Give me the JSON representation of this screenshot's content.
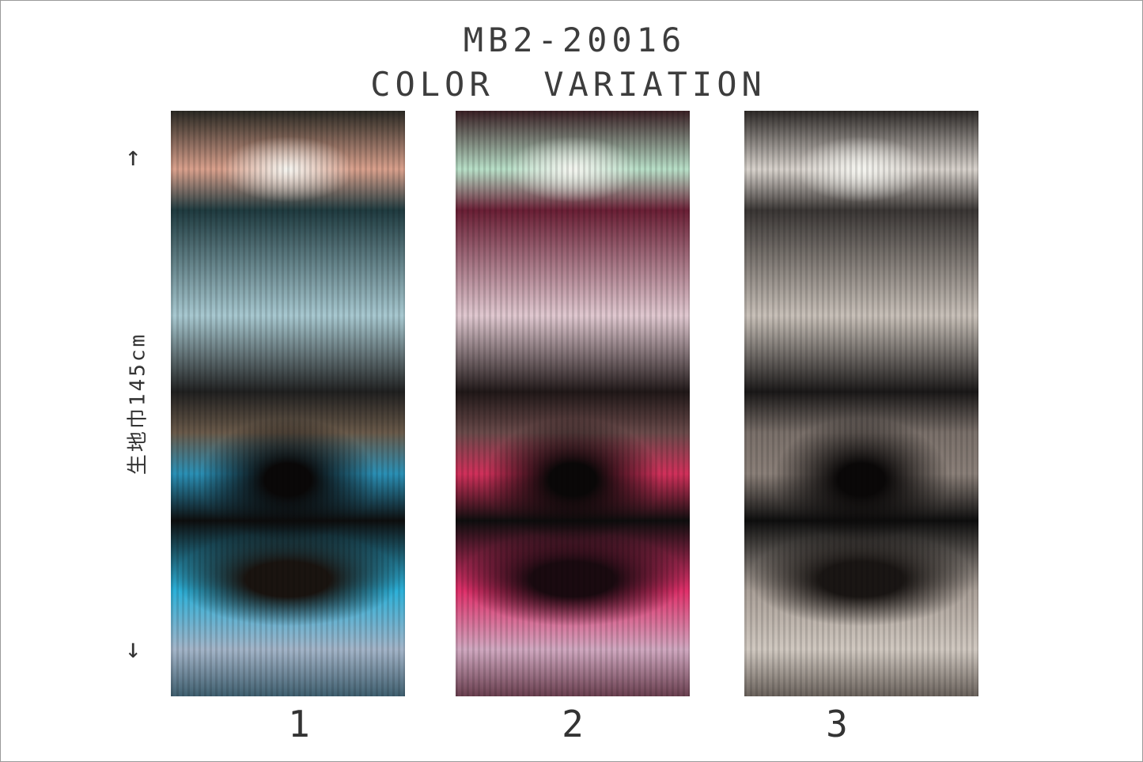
{
  "title": {
    "code": "MB2-20016",
    "subtitle": "COLOR  VARIATION"
  },
  "size_label": "生地巾145cm",
  "arrows": {
    "up": "↑",
    "down": "↓"
  },
  "variations": [
    {
      "number": "1",
      "dominant_colors": [
        "#2cb0d8",
        "#1f3b40",
        "#d9a08c"
      ]
    },
    {
      "number": "2",
      "dominant_colors": [
        "#d0305a",
        "#6a1f35",
        "#b8e0c8"
      ]
    },
    {
      "number": "3",
      "dominant_colors": [
        "#8a7f78",
        "#3a3634",
        "#d8d2cc"
      ]
    }
  ]
}
